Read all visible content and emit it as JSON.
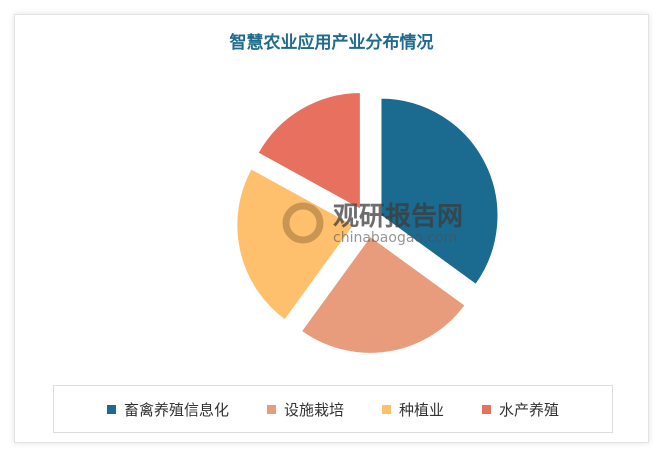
{
  "chart_data": {
    "type": "pie",
    "title": "智慧农业应用产业分布情况",
    "categories": [
      "畜禽养殖信息化",
      "设施栽培",
      "种植业",
      "水产养殖"
    ],
    "values": [
      35,
      25,
      23,
      17
    ],
    "colors": [
      "#1b6a8f",
      "#e89c7b",
      "#ffc06e",
      "#e8705f"
    ],
    "legend_position": "bottom"
  },
  "watermark": {
    "name": "观研报告网",
    "url": "chinabaogao.com"
  }
}
